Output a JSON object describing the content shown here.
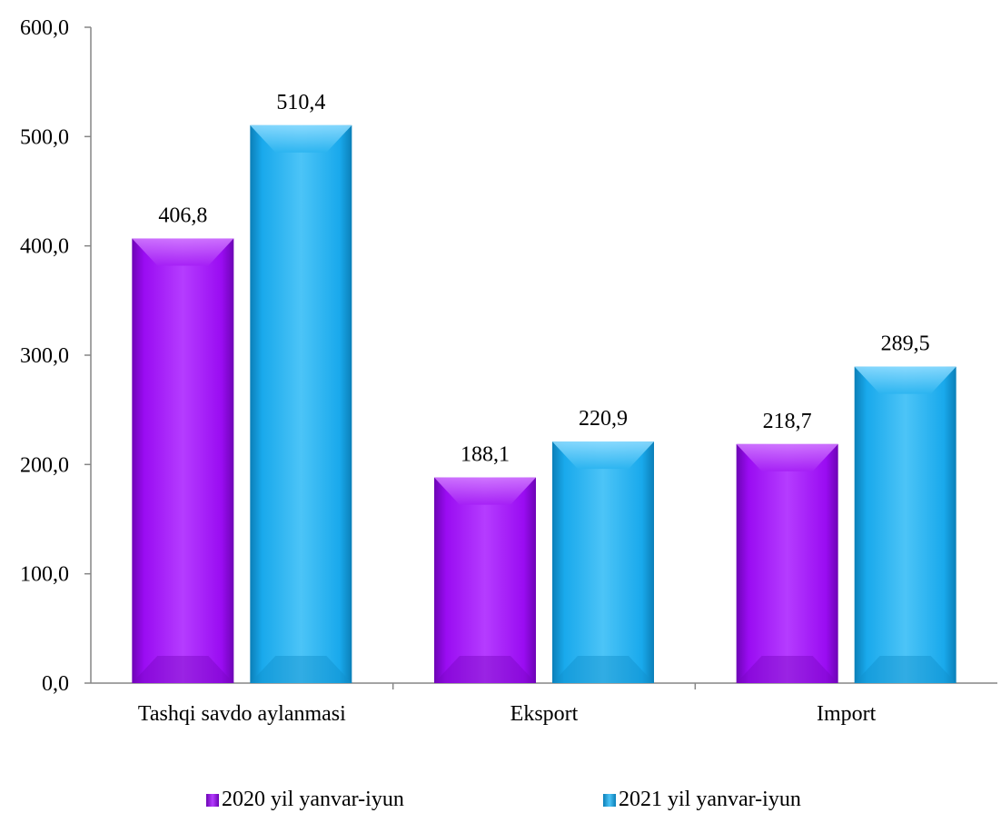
{
  "chart_data": {
    "type": "bar",
    "title": "",
    "xlabel": "",
    "ylabel": "",
    "categories": [
      "Tashqi savdo aylanmasi",
      "Eksport",
      "Import"
    ],
    "series": [
      {
        "name": "2020 yil yanvar-iyun",
        "values": [
          406.8,
          188.1,
          218.7
        ],
        "labels": [
          "406,8",
          "188,1",
          "218,7"
        ],
        "color": "#9a0cf2"
      },
      {
        "name": "2021 yil yanvar-iyun",
        "values": [
          510.4,
          220.9,
          289.5
        ],
        "labels": [
          "510,4",
          "220,9",
          "289,5"
        ],
        "color": "#19a9ec"
      }
    ],
    "ylim": [
      0,
      600
    ],
    "yticks": [
      0,
      100,
      200,
      300,
      400,
      500,
      600
    ],
    "ytick_labels": [
      "0,0",
      "100,0",
      "200,0",
      "300,0",
      "400,0",
      "500,0",
      "600,0"
    ],
    "grid": false,
    "legend_position": "bottom"
  }
}
